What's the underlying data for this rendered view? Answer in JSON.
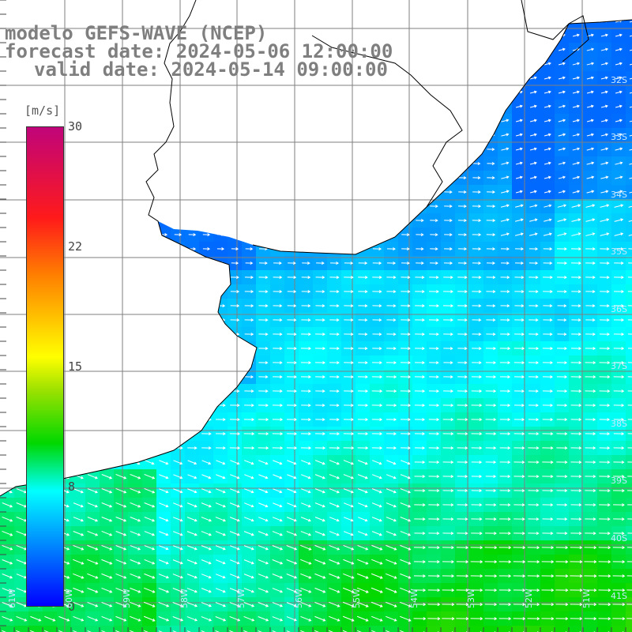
{
  "title": {
    "line1": "modelo GEFS-WAVE (NCEP)",
    "line2": "forecast date: 2024-05-06 12:00:00",
    "line3": "valid date: 2024-05-14 09:00:00"
  },
  "colorbar": {
    "unit": "[m/s]",
    "ticks": [
      "30",
      "22",
      "15",
      "8",
      "0"
    ]
  },
  "lat_labels": [
    "32S",
    "33S",
    "34S",
    "35S",
    "36S",
    "37S",
    "38S",
    "39S",
    "40S",
    "41S"
  ],
  "lon_labels": [
    "61W",
    "60W",
    "59W",
    "58W",
    "57W",
    "56W",
    "55W",
    "54W",
    "53W",
    "52W",
    "51W"
  ],
  "colors": {
    "land": "#ffffff",
    "coastline": "#000000",
    "grid": "#7f7f7f",
    "arrows": "#ffffff",
    "title": "#7f7f7f"
  },
  "map": {
    "variable": "wind speed",
    "arrow_direction": "west-to-east (eastward / south-eastward)",
    "region": "Rio de la Plata and South Atlantic coast"
  }
}
